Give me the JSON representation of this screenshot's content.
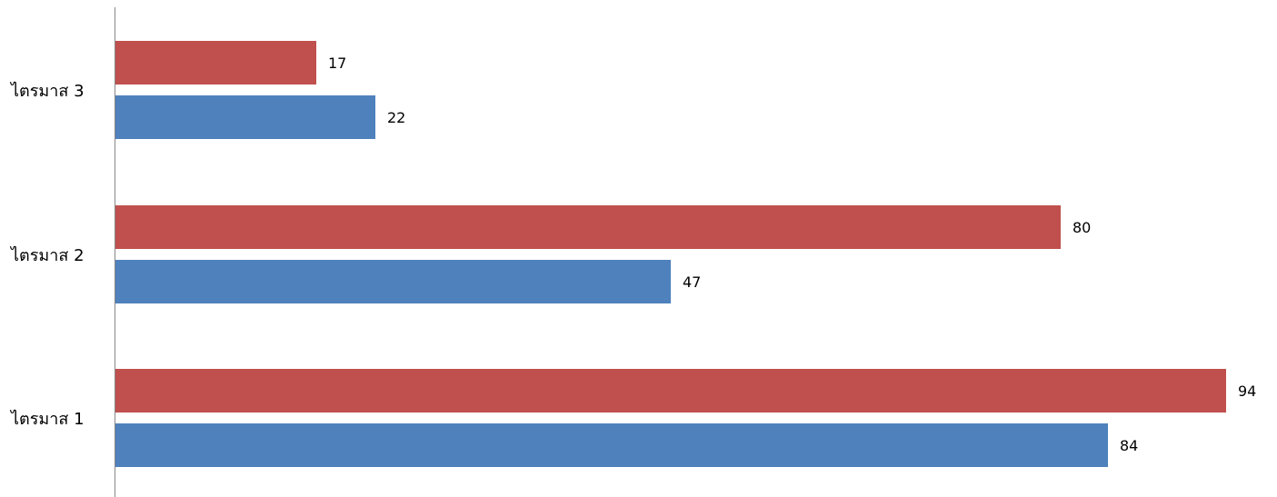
{
  "chart_data": {
    "type": "bar",
    "orientation": "horizontal",
    "categories": [
      "ไตรมาส 1",
      "ไตรมาส 2",
      "ไตรมาส 3"
    ],
    "series": [
      {
        "values": [
          84,
          47,
          22
        ],
        "color": "#4f81bd"
      },
      {
        "values": [
          94,
          80,
          17
        ],
        "color": "#c0504d"
      }
    ],
    "xlim": [
      0,
      100
    ],
    "grid": false,
    "legend": "none",
    "data_labels": true
  }
}
